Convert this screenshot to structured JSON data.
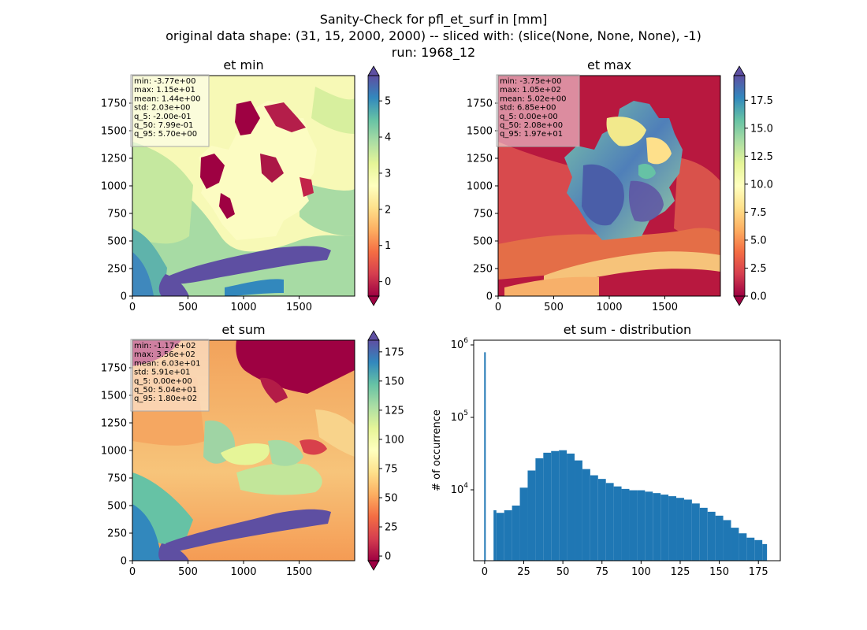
{
  "figure": {
    "title_line1": "Sanity-Check for pfl_et_surf in [mm]",
    "title_line2": "original data shape: (31, 15, 2000, 2000) -- sliced with: (slice(None, None, None), -1)",
    "title_line3": "run: 1968_12"
  },
  "colormap": "Spectral",
  "colors": {
    "ramp": [
      "#9e0142",
      "#d53e4f",
      "#f46d43",
      "#fdae61",
      "#fee08b",
      "#ffffbf",
      "#e6f598",
      "#abdda4",
      "#66c2a5",
      "#3288bd",
      "#5e4fa2"
    ],
    "histogram_bar": "#1f77b4"
  },
  "chart_data": [
    {
      "type": "heatmap",
      "title": "et min",
      "xticks": [
        "0",
        "500",
        "1000",
        "1500"
      ],
      "yticks": [
        "0",
        "250",
        "500",
        "750",
        "1000",
        "1250",
        "1500",
        "1750"
      ],
      "xlim": [
        0,
        2000
      ],
      "ylim": [
        0,
        2000
      ],
      "colorbar_ticks": [
        "0",
        "1",
        "2",
        "3",
        "4",
        "5"
      ],
      "colorbar_range": [
        -0.4,
        5.7
      ],
      "stats": [
        "min: -3.77e+00",
        "max: 1.15e+01",
        "mean: 1.44e+00",
        "std: 2.03e+00",
        "q_5: -2.00e-01",
        "q_50: 7.99e-01",
        "q_95: 5.70e+00"
      ]
    },
    {
      "type": "heatmap",
      "title": "et max",
      "xticks": [
        "0",
        "500",
        "1000",
        "1500"
      ],
      "yticks": [
        "0",
        "250",
        "500",
        "750",
        "1000",
        "1250",
        "1500",
        "1750"
      ],
      "xlim": [
        0,
        2000
      ],
      "ylim": [
        0,
        2000
      ],
      "colorbar_ticks": [
        "0.0",
        "2.5",
        "5.0",
        "7.5",
        "10.0",
        "12.5",
        "15.0",
        "17.5"
      ],
      "colorbar_range": [
        0,
        19.7
      ],
      "stats": [
        "min: -3.75e+00",
        "max: 1.05e+02",
        "mean: 5.02e+00",
        "std: 6.85e+00",
        "q_5: 0.00e+00",
        "q_50: 2.08e+00",
        "q_95: 1.97e+01"
      ]
    },
    {
      "type": "heatmap",
      "title": "et sum",
      "xticks": [
        "0",
        "500",
        "1000",
        "1500"
      ],
      "yticks": [
        "0",
        "250",
        "500",
        "750",
        "1000",
        "1250",
        "1500",
        "1750"
      ],
      "xlim": [
        0,
        2000
      ],
      "ylim": [
        0,
        2000
      ],
      "colorbar_ticks": [
        "0",
        "25",
        "50",
        "75",
        "100",
        "125",
        "150",
        "175"
      ],
      "colorbar_range": [
        -4,
        185
      ],
      "stats": [
        "min: -1.17e+02",
        "max: 3.56e+02",
        "mean: 6.03e+01",
        "std: 5.91e+01",
        "q_5: 0.00e+00",
        "q_50: 5.04e+01",
        "q_95: 1.80e+02"
      ]
    },
    {
      "type": "bar",
      "title": "et sum - distribution",
      "ylabel": "# of occurrence",
      "yscale": "log",
      "xticks": [
        "0",
        "25",
        "50",
        "75",
        "100",
        "125",
        "150",
        "175"
      ],
      "yticks": [
        "10",
        "10",
        "10"
      ],
      "ytick_exponents": [
        "4",
        "5",
        "6"
      ],
      "xlim": [
        -7,
        189
      ],
      "ylim_log10": [
        3.14,
        6.08
      ],
      "x": [
        0,
        5,
        10,
        15,
        20,
        25,
        30,
        35,
        40,
        45,
        50,
        55,
        60,
        65,
        70,
        75,
        80,
        85,
        90,
        95,
        100,
        105,
        110,
        115,
        120,
        125,
        130,
        135,
        140,
        145,
        150,
        155,
        160,
        165,
        170,
        175,
        180
      ],
      "values": [
        830000,
        6500,
        6000,
        6500,
        7500,
        13000,
        22000,
        32000,
        38000,
        40000,
        41000,
        37000,
        30000,
        23000,
        19000,
        17000,
        15000,
        13500,
        12500,
        12000,
        12000,
        11500,
        11000,
        10500,
        10000,
        9500,
        9000,
        8000,
        7000,
        6200,
        5500,
        4800,
        3800,
        3200,
        2800,
        2600,
        2300
      ]
    }
  ]
}
